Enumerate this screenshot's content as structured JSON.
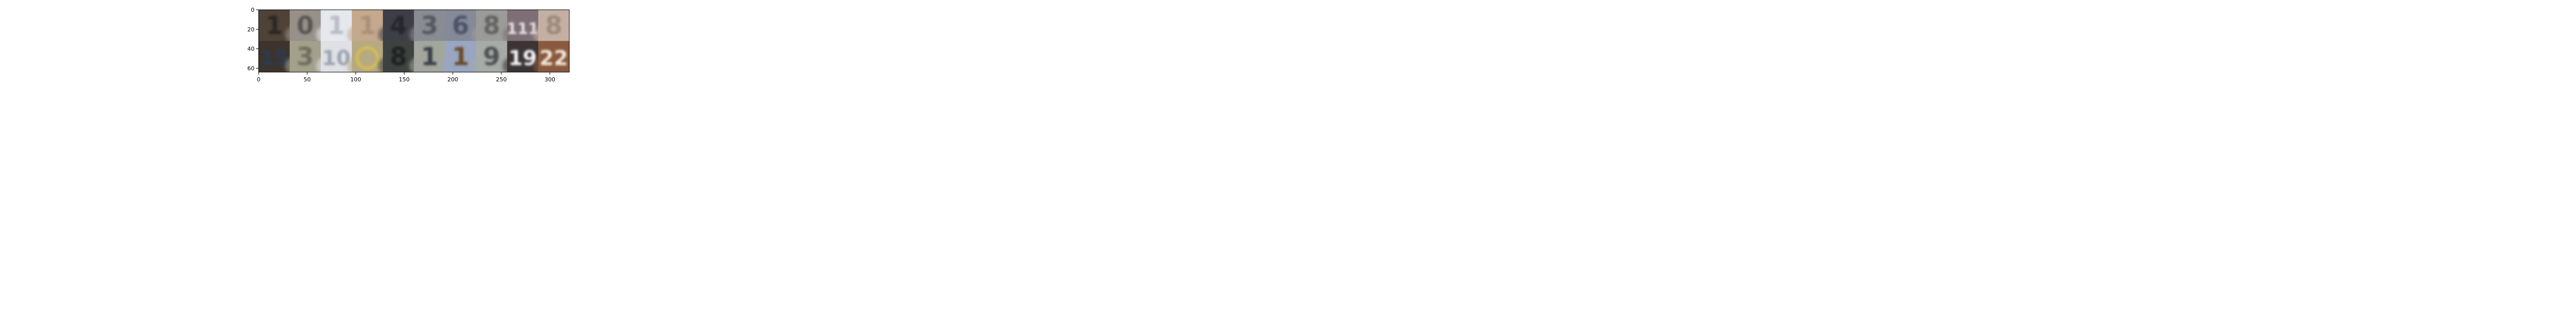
{
  "figure": {
    "description_type": "image grid rendered with matplotlib imshow",
    "x_ticks": [
      "0",
      "50",
      "100",
      "150",
      "200",
      "250",
      "300"
    ],
    "y_ticks": [
      "0",
      "20",
      "40",
      "60"
    ],
    "x_range": [
      0,
      320
    ],
    "y_range": [
      0,
      64
    ],
    "grid": {
      "rows": 2,
      "cols": 10,
      "cell_size": 32
    }
  },
  "tiles": [
    {
      "digit": "1",
      "bg": "#4f4237",
      "fg": "#2c2620"
    },
    {
      "digit": "0",
      "bg": "#97918a",
      "fg": "#595552"
    },
    {
      "digit": "1",
      "bg": "#e5e8ed",
      "fg": "#b7bcc6"
    },
    {
      "digit": "1",
      "bg": "#c4a98d",
      "fg": "#aa9079"
    },
    {
      "digit": "4",
      "bg": "#3e3f46",
      "fg": "#23252b"
    },
    {
      "digit": "3",
      "bg": "#898d93",
      "fg": "#54575f"
    },
    {
      "digit": "6",
      "bg": "#848a98",
      "fg": "#4c5368"
    },
    {
      "digit": "8",
      "bg": "#9b9c99",
      "fg": "#626460"
    },
    {
      "digit": "111",
      "bg": "#7d6f75",
      "fg": "#e8e4e6"
    },
    {
      "digit": "8",
      "bg": "#c4b0a2",
      "fg": "#9c8a7d"
    },
    {
      "digit": "15",
      "bg": "#3e342d",
      "fg": "#2a3a52"
    },
    {
      "digit": "3",
      "bg": "#a3a08b",
      "fg": "#6f6e5e"
    },
    {
      "digit": "10",
      "bg": "#dfe1e6",
      "fg": "#9da3b2"
    },
    {
      "digit": "0",
      "bg": "#b6aa83",
      "fg": "#d9bf4a"
    },
    {
      "digit": "8",
      "bg": "#3e4340",
      "fg": "#1f2220"
    },
    {
      "digit": "1",
      "bg": "#a3a69c",
      "fg": "#3a3f49"
    },
    {
      "digit": "1",
      "bg": "#99a6c2",
      "fg": "#6b4b2c"
    },
    {
      "digit": "9",
      "bg": "#a6aba8",
      "fg": "#4d5252"
    },
    {
      "digit": "19",
      "bg": "#3c3434",
      "fg": "#f1f2f7"
    },
    {
      "digit": "22",
      "bg": "#8a5a3e",
      "fg": "#f2e7da"
    }
  ]
}
